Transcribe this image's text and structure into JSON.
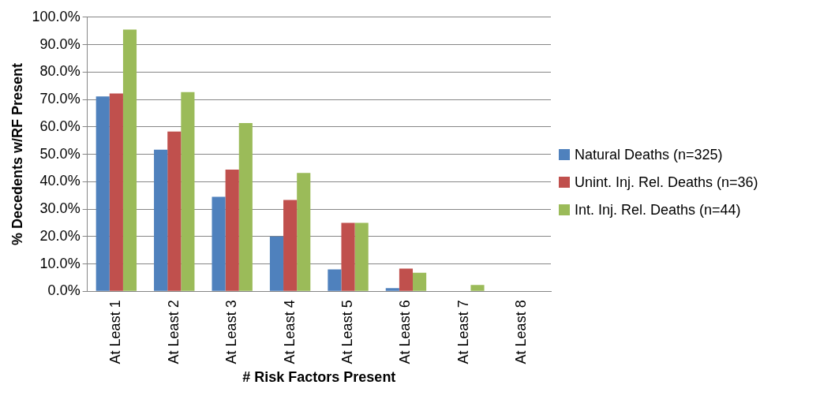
{
  "chart_data": {
    "type": "bar",
    "xlabel": "# Risk Factors Present",
    "ylabel": "% Decedents w/RF Present",
    "categories": [
      "At Least 1",
      "At Least 2",
      "At Least 3",
      "At Least 4",
      "At Least 5",
      "At Least 6",
      "At Least 7",
      "At Least 8"
    ],
    "series": [
      {
        "name": "Natural Deaths (n=325)",
        "color": "#4f81bd",
        "values": [
          71.1,
          51.7,
          34.5,
          20.0,
          8.0,
          1.2,
          0,
          0
        ]
      },
      {
        "name": "Unint. Inj. Rel. Deaths (n=36)",
        "color": "#c0504d",
        "values": [
          72.2,
          58.3,
          44.4,
          33.3,
          25.0,
          8.3,
          0,
          0
        ]
      },
      {
        "name": "Int. Inj. Rel. Deaths (n=44)",
        "color": "#9bbb59",
        "values": [
          95.5,
          72.7,
          61.4,
          43.2,
          25.0,
          6.8,
          2.3,
          0
        ]
      }
    ],
    "ylim": [
      0,
      100
    ],
    "yticks": [
      {
        "value": 0,
        "label": "0.0%"
      },
      {
        "value": 10,
        "label": "10.0%"
      },
      {
        "value": 20,
        "label": "20.0%"
      },
      {
        "value": 30,
        "label": "30.0%"
      },
      {
        "value": 40,
        "label": "40.0%"
      },
      {
        "value": 50,
        "label": "50.0%"
      },
      {
        "value": 60,
        "label": "60.0%"
      },
      {
        "value": 70,
        "label": "70.0%"
      },
      {
        "value": 80,
        "label": "80.0%"
      },
      {
        "value": 90,
        "label": "90.0%"
      },
      {
        "value": 100,
        "label": "100.0%"
      }
    ],
    "grid": "y",
    "legend": "right"
  }
}
